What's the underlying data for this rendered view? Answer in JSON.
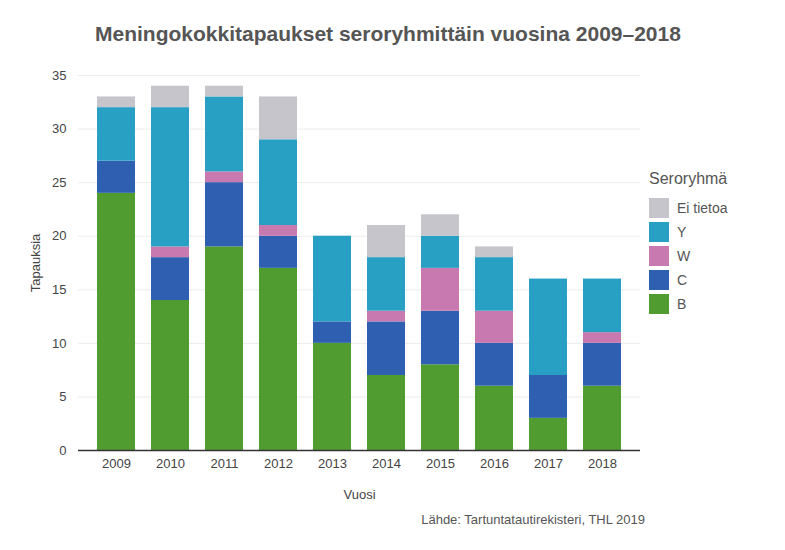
{
  "chart_data": {
    "type": "bar",
    "stacked": true,
    "title": "Meningokokkitapaukset seroryhmittäin vuosina 2009–2018",
    "x_label": "Vuosi",
    "y_label": "Tapauksia",
    "legend_title": "Seroryhmä",
    "caption": "Lähde: Tartuntatautirekisteri, THL 2019",
    "legend": "right",
    "grid": true,
    "categories": [
      "2009",
      "2010",
      "2011",
      "2012",
      "2013",
      "2014",
      "2015",
      "2016",
      "2017",
      "2018"
    ],
    "series": [
      {
        "name": "B",
        "color": "#519c31",
        "values": [
          24,
          14,
          19,
          17,
          10,
          7,
          8,
          6,
          3,
          6
        ]
      },
      {
        "name": "C",
        "color": "#2e5fb0",
        "values": [
          3,
          4,
          6,
          3,
          2,
          5,
          5,
          4,
          4,
          4
        ]
      },
      {
        "name": "W",
        "color": "#c879b0",
        "values": [
          0,
          1,
          1,
          1,
          0,
          1,
          4,
          3,
          0,
          1
        ]
      },
      {
        "name": "Y",
        "color": "#28a0c4",
        "values": [
          5,
          13,
          7,
          8,
          8,
          5,
          3,
          5,
          9,
          5
        ]
      },
      {
        "name": "Ei tietoa",
        "color": "#c5c5cb",
        "values": [
          1,
          2,
          1,
          4,
          0,
          3,
          2,
          1,
          0,
          0
        ]
      }
    ],
    "ylim": [
      0,
      35
    ],
    "yticks": [
      0,
      5,
      10,
      15,
      20,
      25,
      30,
      35
    ]
  }
}
